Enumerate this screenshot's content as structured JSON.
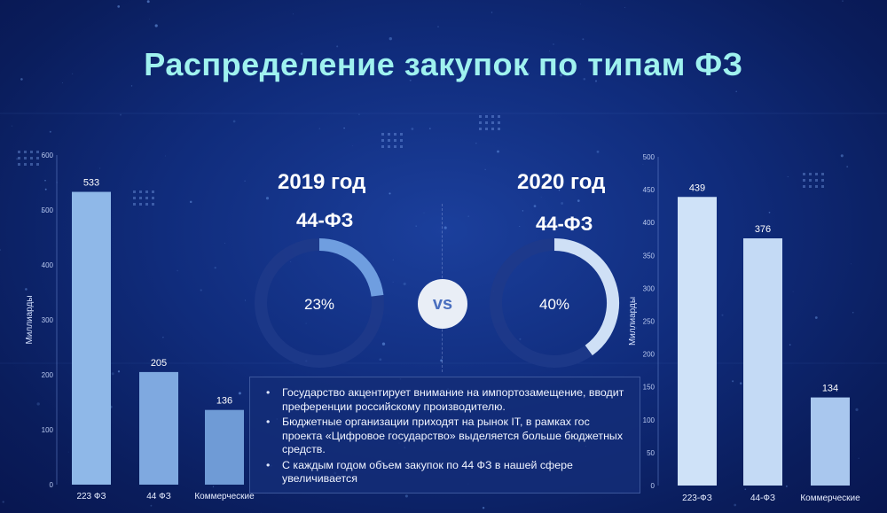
{
  "slide": {
    "title": "Распределение закупок по типам  ФЗ",
    "vs": "vs",
    "info_bullets": [
      "Государство акцентирует внимание на импортозамещение, вводит преференции российскому  производителю.",
      "Бюджетные организации приходят на рынок IT, в рамках  гос проекта «Цифровое  государство» выделяется больше бюджетных средств.",
      "С каждым годом объем закупок по 44 ФЗ в нашей сфере увеличивается"
    ]
  },
  "donuts": [
    {
      "year": "2019 год",
      "law": "44-ФЗ",
      "label": "23%",
      "value": 23
    },
    {
      "year": "2020 год",
      "law": "44-ФЗ",
      "label": "40%",
      "value": 40
    }
  ],
  "chart_data": [
    {
      "type": "bar",
      "ylabel": "Миллиарды",
      "ylim": [
        0,
        600
      ],
      "yticks": [
        "0",
        "100",
        "200",
        "300",
        "400",
        "500",
        "600"
      ],
      "categories": [
        "223 ФЗ",
        "44 ФЗ",
        "Коммерческие"
      ],
      "values": [
        533,
        205,
        136
      ],
      "data_labels": [
        "533",
        "205",
        "136"
      ],
      "bar_colors": [
        "#8fb8e8",
        "#7fa9e0",
        "#6f9bd6"
      ]
    },
    {
      "type": "bar",
      "ylabel": "Миллиарды",
      "ylim": [
        0,
        500
      ],
      "yticks": [
        "0",
        "50",
        "100",
        "150",
        "200",
        "250",
        "300",
        "350",
        "400",
        "450",
        "500"
      ],
      "categories": [
        "223-ФЗ",
        "44-ФЗ",
        "Коммерческие"
      ],
      "values": [
        439,
        376,
        134
      ],
      "data_labels": [
        "439",
        "376",
        "134"
      ],
      "bar_colors": [
        "#cfe2f8",
        "#c4daf5",
        "#a9c7ee"
      ]
    }
  ],
  "colors": {
    "title": "#9ff2ef",
    "donut_track": "#1e3a8a",
    "donut_fill_2019": "#6f9ee0",
    "donut_fill_2020": "#cfe0f6"
  }
}
